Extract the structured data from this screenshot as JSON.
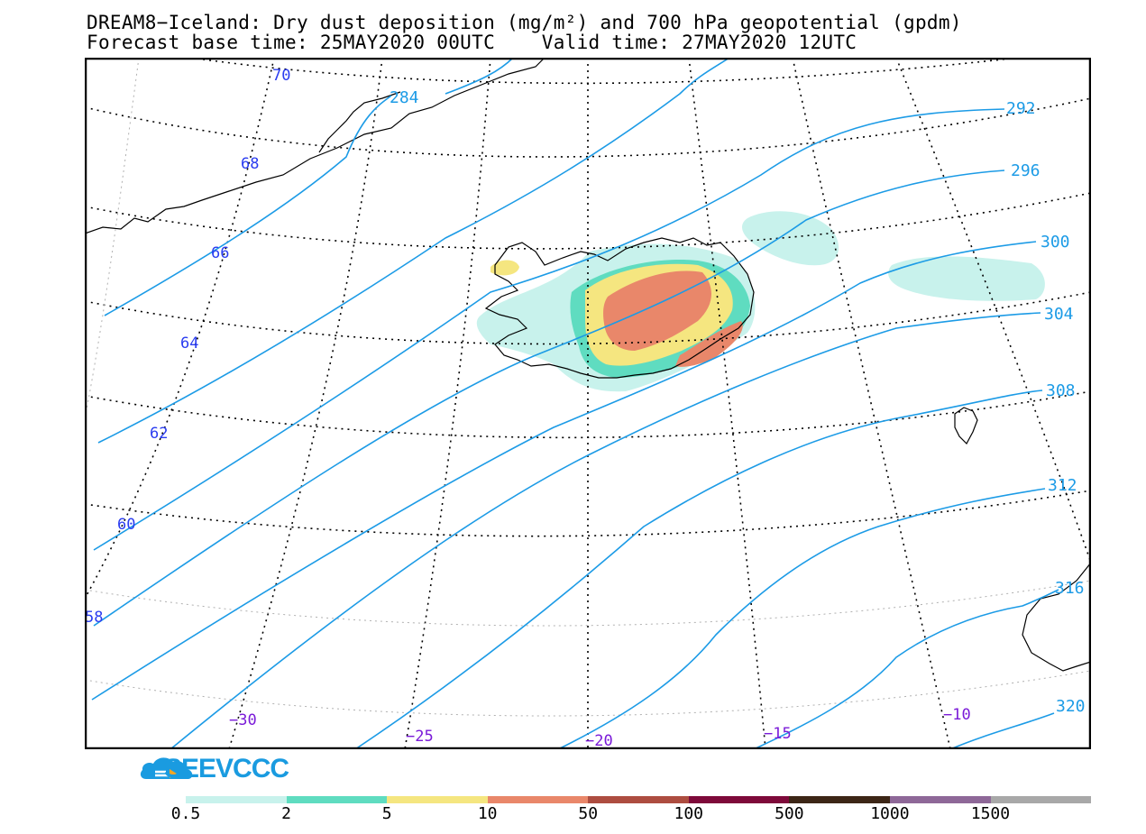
{
  "header": {
    "title_line1": "DREAM8−Iceland: Dry dust deposition (mg/m²) and 700 hPa geopotential (gpdm)",
    "title_line2": "Forecast base time: 25MAY2020 00UTC    Valid time: 27MAY2020 12UTC"
  },
  "map": {
    "contour_color": "#1c9be6",
    "contour_labels": [
      "284",
      "292",
      "296",
      "300",
      "304",
      "308",
      "312",
      "316",
      "320"
    ],
    "latitude_labels": [
      "70",
      "68",
      "66",
      "64",
      "62",
      "60",
      "58"
    ],
    "longitude_labels": [
      "−30",
      "−25",
      "−20",
      "−15",
      "−10"
    ],
    "lat_label_color": "#2a3cf0",
    "lon_label_color": "#7a1ad8"
  },
  "logo": {
    "text": "SEEVCCC"
  },
  "legend": {
    "colors": [
      "#c8f2ec",
      "#5fdcc0",
      "#f5e680",
      "#e9876a",
      "#ad4d40",
      "#7e0a3a",
      "#3c2616",
      "#8e6898",
      "#a8a8a8"
    ],
    "labels": [
      "0.5",
      "2",
      "5",
      "10",
      "50",
      "100",
      "500",
      "1000",
      "1500"
    ]
  }
}
